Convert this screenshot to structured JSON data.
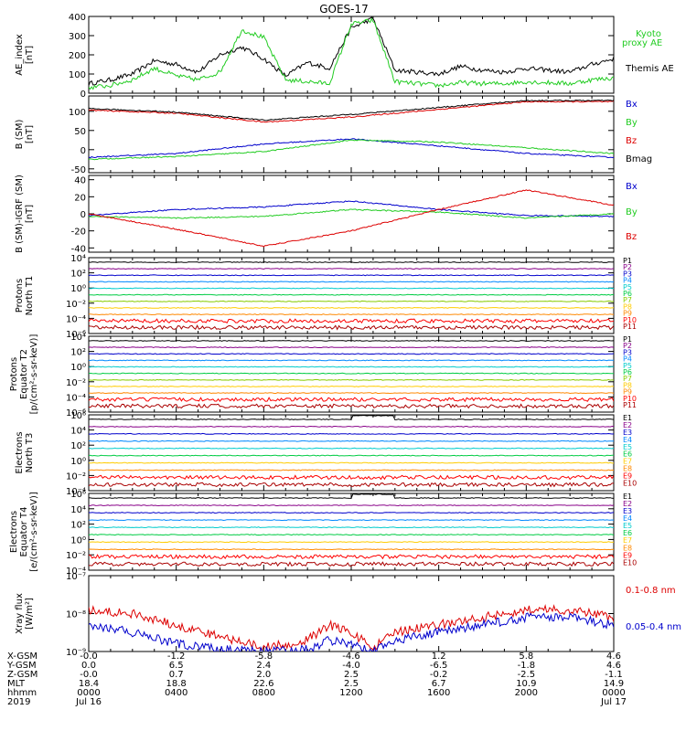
{
  "title": "GOES-17",
  "chart_data": [
    {
      "type": "line",
      "panel": "ae-index",
      "ylabel": [
        "AE_index",
        "[nT]"
      ],
      "ylim": [
        0,
        400
      ],
      "yticks": [
        "0",
        "100",
        "200",
        "300",
        "400"
      ],
      "series": [
        {
          "name": "Themis AE",
          "color": "#000000",
          "x": [
            0,
            1,
            2,
            3,
            4,
            5,
            6,
            7,
            8,
            9,
            10,
            11,
            12,
            13,
            14,
            15,
            16,
            17,
            18,
            19,
            20,
            21,
            22,
            23,
            24
          ],
          "values": [
            50,
            70,
            100,
            170,
            150,
            110,
            200,
            240,
            180,
            90,
            160,
            130,
            340,
            390,
            120,
            110,
            100,
            140,
            120,
            110,
            130,
            120,
            110,
            150,
            180
          ]
        },
        {
          "name": "Kyoto proxy AE",
          "color": "#22cc22",
          "x": [
            0,
            1,
            2,
            3,
            4,
            5,
            6,
            7,
            8,
            9,
            10,
            11,
            12,
            13,
            14,
            15,
            16,
            17,
            18,
            19,
            20,
            21,
            22,
            23,
            24
          ],
          "values": [
            30,
            40,
            70,
            130,
            90,
            70,
            110,
            330,
            290,
            70,
            60,
            50,
            360,
            380,
            60,
            50,
            40,
            55,
            50,
            50,
            60,
            55,
            50,
            70,
            80
          ]
        }
      ]
    },
    {
      "type": "line",
      "panel": "b-sm",
      "ylabel": [
        "B (SM)",
        "[nT]"
      ],
      "ylim": [
        -60,
        140
      ],
      "yticks": [
        "-50",
        "0",
        "50",
        "100"
      ],
      "series": [
        {
          "name": "Bx",
          "color": "#0000cc",
          "x": [
            0,
            4,
            8,
            12,
            16,
            20,
            24
          ],
          "values": [
            -20,
            -10,
            15,
            28,
            10,
            -10,
            -20
          ]
        },
        {
          "name": "By",
          "color": "#22cc22",
          "x": [
            0,
            4,
            8,
            12,
            16,
            20,
            24
          ],
          "values": [
            -25,
            -18,
            -5,
            25,
            20,
            5,
            -10
          ]
        },
        {
          "name": "Bz",
          "color": "#dd0000",
          "x": [
            0,
            4,
            8,
            12,
            16,
            20,
            24
          ],
          "values": [
            103,
            95,
            72,
            85,
            105,
            125,
            125
          ]
        },
        {
          "name": "Bmag",
          "color": "#000000",
          "x": [
            0,
            4,
            8,
            12,
            16,
            20,
            24
          ],
          "values": [
            107,
            98,
            77,
            92,
            110,
            128,
            128
          ]
        }
      ]
    },
    {
      "type": "line",
      "panel": "b-minus-igrf",
      "ylabel": [
        "B (SM)-IGRF (SM)",
        "[nT]"
      ],
      "ylim": [
        -45,
        45
      ],
      "yticks": [
        "-40",
        "-20",
        "0",
        "20",
        "40"
      ],
      "series": [
        {
          "name": "Bx",
          "color": "#0000cc",
          "x": [
            0,
            4,
            8,
            12,
            16,
            20,
            24
          ],
          "values": [
            -2,
            5,
            8,
            15,
            5,
            -2,
            -3
          ]
        },
        {
          "name": "By",
          "color": "#22cc22",
          "x": [
            0,
            4,
            8,
            12,
            16,
            20,
            24
          ],
          "values": [
            -3,
            -5,
            -3,
            5,
            2,
            -5,
            0
          ]
        },
        {
          "name": "Bz",
          "color": "#dd0000",
          "x": [
            0,
            4,
            8,
            12,
            16,
            20,
            24
          ],
          "values": [
            0,
            -18,
            -38,
            -20,
            5,
            28,
            10
          ]
        }
      ]
    },
    {
      "type": "line",
      "panel": "protons-north",
      "ylabel": [
        "Protons",
        "North T1"
      ],
      "ylim": [
        -6,
        4
      ],
      "yticks": [
        "10⁴",
        "10²",
        "10⁰",
        "10⁻²",
        "10⁻⁴",
        "10⁻⁶"
      ],
      "channels": [
        "P1",
        "P2",
        "P3",
        "P4",
        "P5",
        "P6",
        "P7",
        "P8",
        "P9",
        "P10",
        "P11"
      ]
    },
    {
      "type": "line",
      "panel": "protons-equator",
      "ylabel": [
        "Protons",
        "Equator T2",
        "[p/(cm²-s-sr-keV)]"
      ],
      "ylim": [
        -6,
        4
      ],
      "yticks": [
        "10⁴",
        "10²",
        "10⁰",
        "10⁻²",
        "10⁻⁴",
        "10⁻⁶"
      ],
      "channels": [
        "P1",
        "P2",
        "P3",
        "P4",
        "P5",
        "P6",
        "P7",
        "P8",
        "P9",
        "P10",
        "P11"
      ]
    },
    {
      "type": "line",
      "panel": "electrons-north",
      "ylabel": [
        "Electrons",
        "North T3"
      ],
      "ylim": [
        -4,
        6
      ],
      "yticks": [
        "10⁶",
        "10⁴",
        "10²",
        "10⁰",
        "10⁻²",
        "10⁻⁴"
      ],
      "channels": [
        "E1",
        "E2",
        "E3",
        "E4",
        "E5",
        "E6",
        "E7",
        "E8",
        "E9",
        "E10"
      ]
    },
    {
      "type": "line",
      "panel": "electrons-equator",
      "ylabel": [
        "Electrons",
        "Equator T4",
        "[e/(cm²-s-sr-keV)]"
      ],
      "ylim": [
        -4,
        6
      ],
      "yticks": [
        "10⁶",
        "10⁴",
        "10²",
        "10⁰",
        "10⁻²",
        "10⁻⁴"
      ],
      "channels": [
        "E1",
        "E2",
        "E3",
        "E4",
        "E5",
        "E6",
        "E7",
        "E8",
        "E9",
        "E10"
      ]
    },
    {
      "type": "line",
      "panel": "xray",
      "ylabel": [
        "Xray flux",
        "[W/m²]"
      ],
      "ylim": [
        -9,
        -7
      ],
      "yticks": [
        "10⁻⁷",
        "10⁻⁸",
        "10⁻⁹"
      ],
      "series": [
        {
          "name": "0.1-0.8 nm",
          "color": "#dd0000",
          "x": [
            0,
            2,
            4,
            6,
            8,
            10,
            11,
            12,
            13,
            14,
            16,
            18,
            20,
            22,
            24
          ],
          "values": [
            -7.9,
            -8.0,
            -8.3,
            -8.6,
            -8.9,
            -8.7,
            -8.3,
            -8.5,
            -8.9,
            -8.5,
            -8.3,
            -8.1,
            -7.9,
            -7.9,
            -8.1
          ]
        },
        {
          "name": "0.05-0.4 nm",
          "color": "#0000cc",
          "x": [
            0,
            2,
            4,
            6,
            8,
            10,
            11,
            12,
            13,
            14,
            16,
            18,
            20,
            22,
            24
          ],
          "values": [
            -8.3,
            -8.5,
            -8.8,
            -8.95,
            -9.0,
            -8.95,
            -8.7,
            -8.8,
            -9.0,
            -8.7,
            -8.5,
            -8.3,
            -8.1,
            -8.1,
            -8.3
          ]
        }
      ]
    }
  ],
  "legends": {
    "ae": [
      {
        "label": "Kyoto",
        "color": "#22cc22"
      },
      {
        "label": "proxy AE",
        "color": "#22cc22"
      },
      {
        "label": "Themis AE",
        "color": "#000000"
      }
    ],
    "bsm": [
      {
        "label": "Bx",
        "color": "#0000cc"
      },
      {
        "label": "By",
        "color": "#22cc22"
      },
      {
        "label": "Bz",
        "color": "#dd0000"
      },
      {
        "label": "Bmag",
        "color": "#000000"
      }
    ],
    "igrf": [
      {
        "label": "Bx",
        "color": "#0000cc"
      },
      {
        "label": "By",
        "color": "#22cc22"
      },
      {
        "label": "Bz",
        "color": "#dd0000"
      }
    ],
    "xray": [
      {
        "label": "0.1-0.8 nm",
        "color": "#dd0000"
      },
      {
        "label": "0.05-0.4 nm",
        "color": "#0000cc"
      }
    ]
  },
  "channel_colors": {
    "protons": [
      "#000000",
      "#880088",
      "#0000cc",
      "#0088ff",
      "#00cccc",
      "#00cc44",
      "#88cc00",
      "#ffcc00",
      "#ff8800",
      "#ff0000",
      "#aa0000"
    ],
    "electrons": [
      "#000000",
      "#880088",
      "#0000cc",
      "#0088ff",
      "#00cccc",
      "#00cc44",
      "#ffcc00",
      "#ff8800",
      "#ff0000",
      "#aa0000"
    ]
  },
  "footer": {
    "row_labels": [
      "X-GSM",
      "Y-GSM",
      "Z-GSM",
      "MLT",
      "hhmm",
      "2019"
    ],
    "columns": [
      [
        "-0.0",
        "0.0",
        "-0.0",
        "18.4",
        "0000",
        "Jul 16"
      ],
      [
        "-1.2",
        "6.5",
        "0.7",
        "18.8",
        "0400",
        ""
      ],
      [
        "-5.8",
        "2.4",
        "2.0",
        "22.6",
        "0800",
        ""
      ],
      [
        "-4.6",
        "-4.0",
        "2.5",
        "2.5",
        "1200",
        ""
      ],
      [
        "1.2",
        "-6.5",
        "-0.2",
        "6.7",
        "1600",
        ""
      ],
      [
        "5.8",
        "-1.8",
        "-2.5",
        "10.9",
        "2000",
        ""
      ],
      [
        "4.6",
        "4.6",
        "-1.1",
        "14.9",
        "0000",
        "Jul 17"
      ]
    ]
  }
}
